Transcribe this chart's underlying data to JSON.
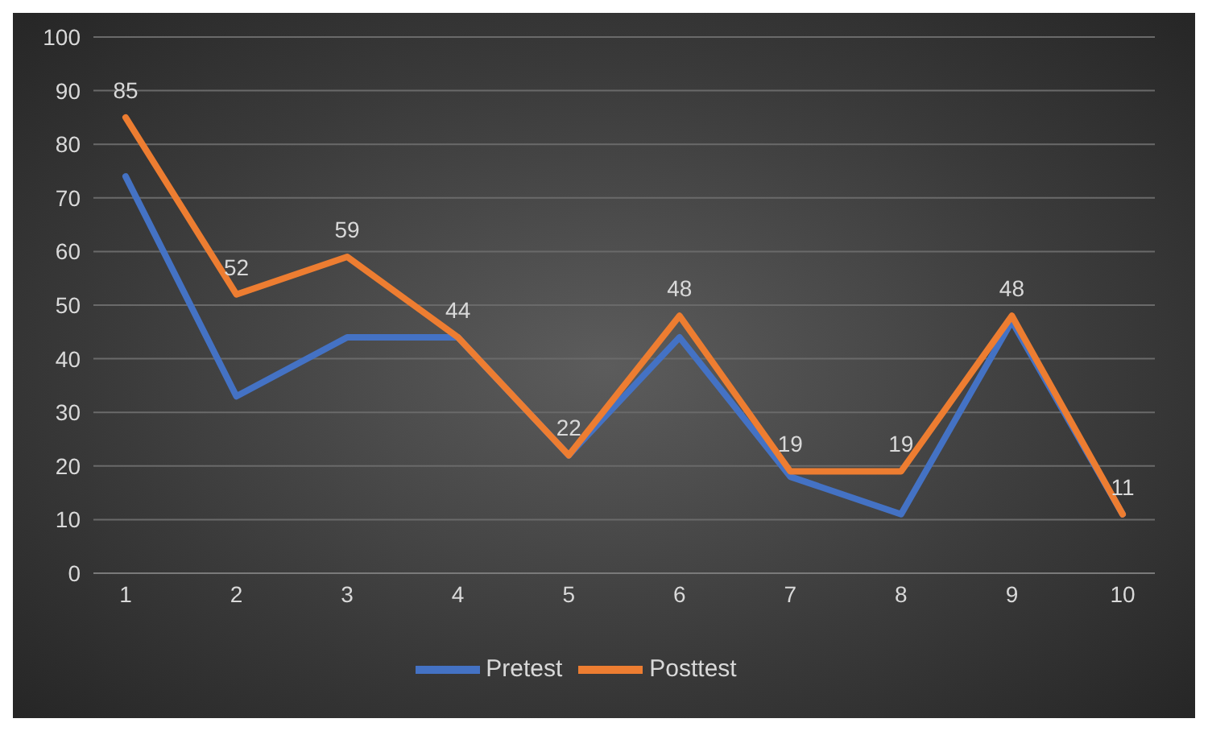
{
  "chart_data": {
    "type": "line",
    "categories": [
      "1",
      "2",
      "3",
      "4",
      "5",
      "6",
      "7",
      "8",
      "9",
      "10"
    ],
    "series": [
      {
        "name": "Pretest",
        "color": "#4472c4",
        "values": [
          74,
          33,
          44,
          44,
          22,
          44,
          18,
          11,
          47,
          11
        ]
      },
      {
        "name": "Posttest",
        "color": "#ed7d31",
        "values": [
          85,
          52,
          59,
          44,
          22,
          48,
          19,
          19,
          48,
          11
        ],
        "value_labels": [
          "85",
          "52",
          "59",
          "44",
          "22",
          "48",
          "19",
          "19",
          "48",
          "11"
        ]
      }
    ],
    "ylim": [
      0,
      100
    ],
    "yticks": [
      0,
      10,
      20,
      30,
      40,
      50,
      60,
      70,
      80,
      90,
      100
    ],
    "grid": "y",
    "legend": "bottom",
    "marker": "none",
    "line_style": "solid"
  }
}
